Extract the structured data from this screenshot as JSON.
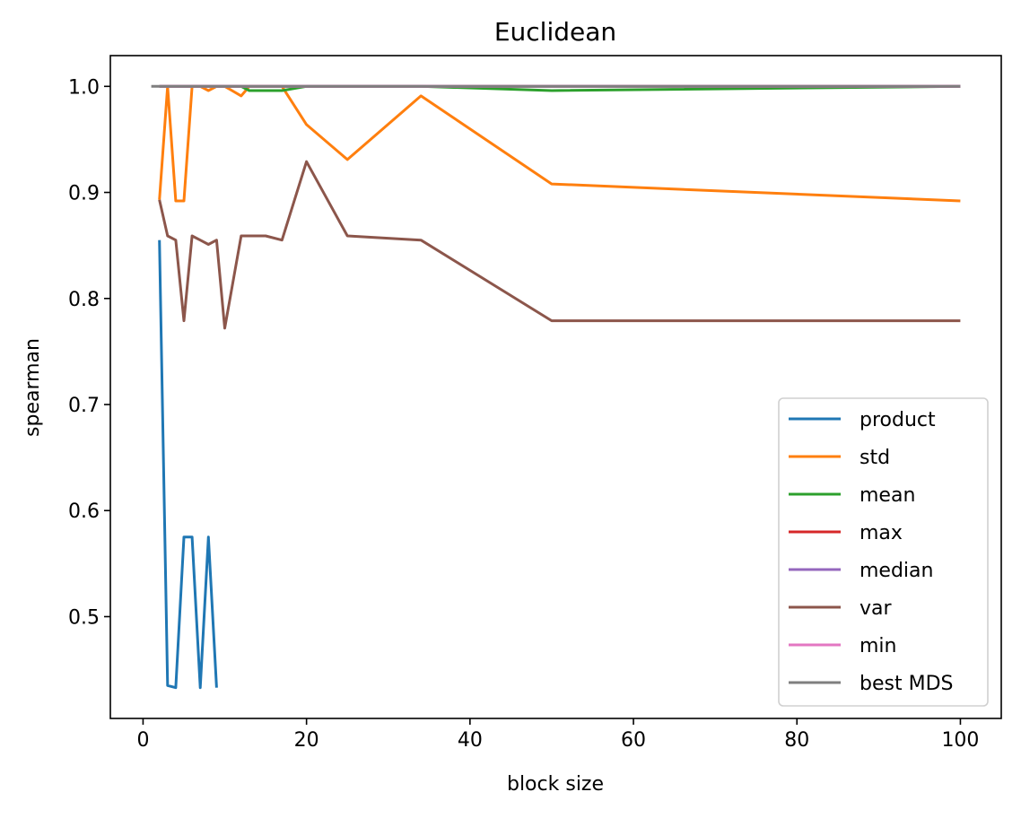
{
  "chart_data": {
    "type": "line",
    "title": "Euclidean",
    "xlabel": "block size",
    "ylabel": "spearman",
    "xlim": [
      -4,
      105
    ],
    "ylim": [
      0.404,
      1.029
    ],
    "xticks": [
      0,
      20,
      40,
      60,
      80,
      100
    ],
    "xtick_labels": [
      "0",
      "20",
      "40",
      "60",
      "80",
      "100"
    ],
    "yticks": [
      0.5,
      0.6,
      0.7,
      0.8,
      0.9,
      1.0
    ],
    "ytick_labels": [
      "0.5",
      "0.6",
      "0.7",
      "0.8",
      "0.9",
      "1.0"
    ],
    "grid": false,
    "legend_position": "lower right",
    "series": [
      {
        "name": "product",
        "color": "#1f77b4",
        "x": [
          2,
          3,
          4,
          5,
          6,
          7,
          8,
          9
        ],
        "y": [
          0.855,
          0.435,
          0.433,
          0.575,
          0.575,
          0.433,
          0.575,
          0.433
        ]
      },
      {
        "name": "std",
        "color": "#ff7f0e",
        "x": [
          2,
          3,
          4,
          5,
          6,
          7,
          8,
          9,
          10,
          12,
          13,
          15,
          17,
          20,
          25,
          34,
          50,
          100
        ],
        "y": [
          0.893,
          1.0,
          0.892,
          0.892,
          1.0,
          1.0,
          0.996,
          1.0,
          1.0,
          0.991,
          1.0,
          1.0,
          1.0,
          0.964,
          0.931,
          0.991,
          0.908,
          0.892
        ]
      },
      {
        "name": "mean",
        "color": "#2ca02c",
        "x": [
          2,
          5,
          10,
          12,
          13,
          15,
          17,
          20,
          25,
          34,
          50,
          100
        ],
        "y": [
          1.0,
          1.0,
          1.0,
          1.0,
          0.996,
          0.996,
          0.996,
          1.0,
          1.0,
          1.0,
          0.996,
          1.0
        ]
      },
      {
        "name": "max",
        "color": "#d62728",
        "x": [
          2,
          100
        ],
        "y": [
          1.0,
          1.0
        ]
      },
      {
        "name": "median",
        "color": "#9467bd",
        "x": [
          2,
          100
        ],
        "y": [
          1.0,
          1.0
        ]
      },
      {
        "name": "var",
        "color": "#8c564b",
        "x": [
          2,
          3,
          4,
          5,
          6,
          7,
          8,
          9,
          10,
          12,
          15,
          17,
          20,
          25,
          34,
          50,
          100
        ],
        "y": [
          0.893,
          0.859,
          0.855,
          0.779,
          0.859,
          0.855,
          0.851,
          0.855,
          0.772,
          0.859,
          0.859,
          0.855,
          0.929,
          0.859,
          0.855,
          0.779,
          0.779
        ]
      },
      {
        "name": "min",
        "color": "#e377c2",
        "x": [
          2,
          100
        ],
        "y": [
          1.0,
          1.0
        ]
      },
      {
        "name": "best MDS",
        "color": "#7f7f7f",
        "x": [
          1,
          100
        ],
        "y": [
          1.0,
          1.0
        ]
      }
    ]
  }
}
